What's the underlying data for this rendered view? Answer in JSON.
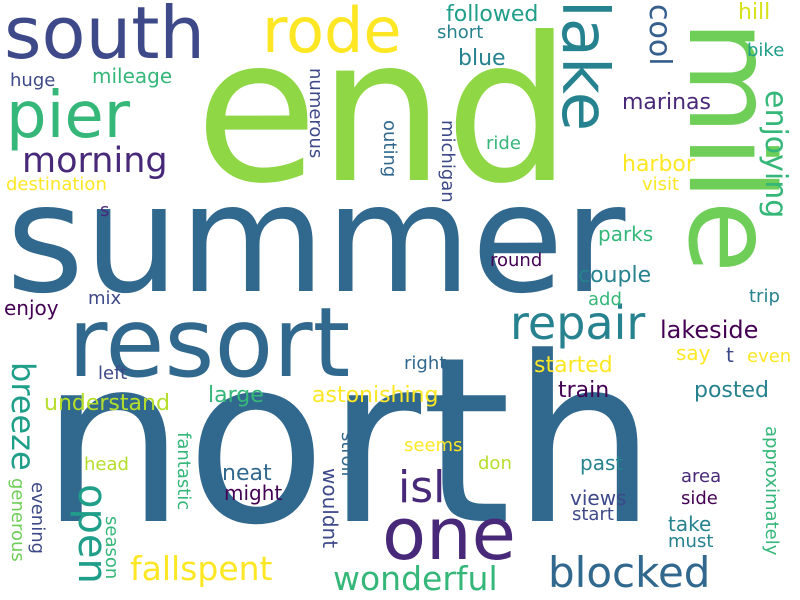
{
  "palette": {
    "dark_purple": "#440154",
    "indigo": "#3e4989",
    "blue": "#31688e",
    "teal": "#26828e",
    "green_teal": "#1f9e89",
    "green": "#35b779",
    "light_green": "#6ece58",
    "lime": "#b5de2b",
    "yellow": "#fde725"
  },
  "words": [
    "north",
    "summer",
    "end",
    "resort",
    "mile",
    "one",
    "south",
    "rode",
    "lake",
    "pier",
    "repair",
    "isl",
    "morning",
    "blocked",
    "wonderful",
    "fallspent",
    "open",
    "breeze",
    "cool",
    "enjoying",
    "lakeside",
    "followed",
    "blue",
    "short",
    "hill",
    "bike",
    "mileage",
    "huge",
    "marinas",
    "numerous",
    "outing",
    "michigan",
    "ride",
    "harbor",
    "visit",
    "destination",
    "s",
    "parks",
    "round",
    "couple",
    "enjoy",
    "mix",
    "add",
    "trip",
    "say",
    "t",
    "even",
    "started",
    "right",
    "left",
    "astonishing",
    "understand",
    "large",
    "train",
    "posted",
    "neat",
    "might",
    "fantastic",
    "head",
    "evening",
    "generous",
    "season",
    "stroll",
    "wouldnt",
    "seems",
    "don",
    "past",
    "views",
    "area",
    "side",
    "take",
    "start",
    "must",
    "approximately"
  ]
}
